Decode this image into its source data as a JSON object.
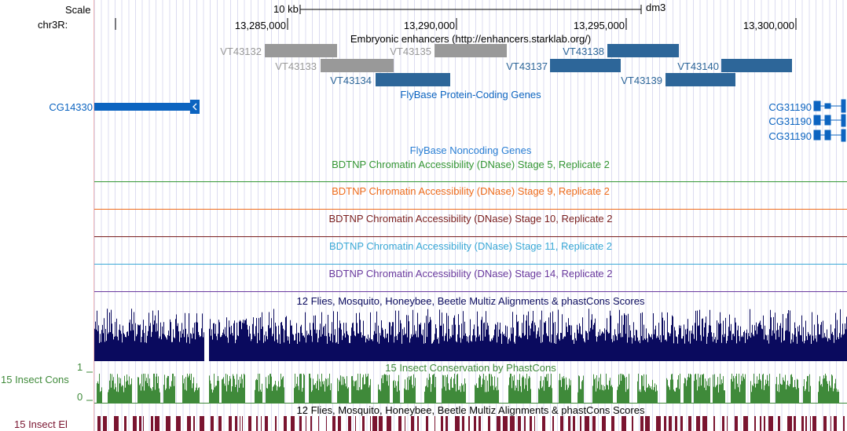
{
  "header": {
    "scale_label": "Scale",
    "scale_value": "10 kb",
    "assembly": "dm3",
    "chrom_label": "chr3R:",
    "positions": [
      "13,285,000",
      "13,290,000",
      "13,295,000",
      "13,300,000"
    ]
  },
  "tracks": {
    "enhancers": {
      "title": "Embryonic enhancers (http://enhancers.starklab.org/)",
      "gray_color": "#999999",
      "blue_color": "#2d6699",
      "items": [
        "VT43132",
        "VT43133",
        "VT43134",
        "VT43135",
        "VT43137",
        "VT43138",
        "VT43139",
        "VT43140"
      ]
    },
    "flybase_coding": {
      "title": "FlyBase Protein-Coding Genes",
      "color": "#0c64c0",
      "genes": [
        "CG14330",
        "CG31190",
        "CG31190",
        "CG31190"
      ]
    },
    "flybase_noncoding": {
      "title": "FlyBase Noncoding Genes",
      "color": "#2a7fd4"
    },
    "dnase": [
      {
        "title": "BDTNP Chromatin Accessibility (DNase) Stage 5, Replicate 2",
        "color": "#349634"
      },
      {
        "title": "BDTNP Chromatin Accessibility (DNase) Stage 9, Replicate 2",
        "color": "#ee6b1b"
      },
      {
        "title": "BDTNP Chromatin Accessibility (DNase) Stage 10, Replicate 2",
        "color": "#7a1f1f"
      },
      {
        "title": "BDTNP Chromatin Accessibility (DNase) Stage 11, Replicate 2",
        "color": "#3aa8d6"
      },
      {
        "title": "BDTNP Chromatin Accessibility (DNase) Stage 14, Replicate 2",
        "color": "#6a3a9e"
      }
    ],
    "multiz": {
      "title": "12 Flies, Mosquito, Honeybee, Beetle Multiz Alignments & phastCons Scores",
      "color": "#0a0a5e"
    },
    "cons": {
      "title": "15 Insect Conservation by PhastCons",
      "side_label": "15 Insect Cons",
      "axis_max": "1",
      "axis_min": "0",
      "color": "#3f8a3a"
    },
    "elements": {
      "title": "12 Flies, Mosquito, Honeybee, Beetle Multiz Alignments & phastCons Scores",
      "side_label": "15 Insect El",
      "color": "#7a1530"
    }
  }
}
